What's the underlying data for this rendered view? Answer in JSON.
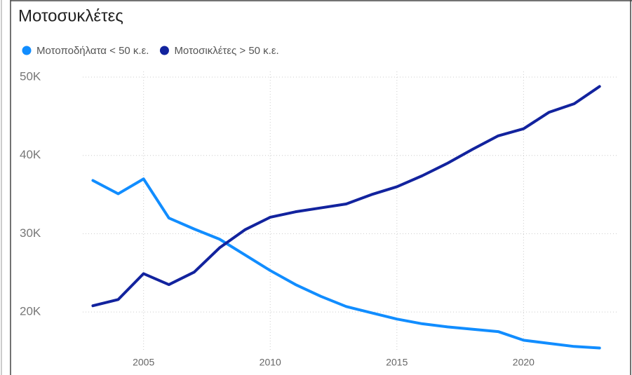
{
  "chart_data": {
    "type": "line",
    "title": "Μοτοσυκλέτες",
    "x": [
      2003,
      2004,
      2005,
      2006,
      2007,
      2008,
      2009,
      2010,
      2011,
      2012,
      2013,
      2014,
      2015,
      2016,
      2017,
      2018,
      2019,
      2020,
      2021,
      2022,
      2023
    ],
    "series": [
      {
        "name": "Μοτοποδήλατα < 50 κ.ε.",
        "color": "#118DFF",
        "values": [
          36800,
          35100,
          37000,
          32000,
          30600,
          29300,
          27300,
          25300,
          23500,
          22000,
          20700,
          19900,
          19100,
          18500,
          18100,
          17800,
          17500,
          16400,
          16000,
          15600,
          15400
        ]
      },
      {
        "name": "Μοτοσικλέτες > 50 κ.ε.",
        "color": "#12239E",
        "values": [
          20800,
          21600,
          24900,
          23500,
          25100,
          28200,
          30500,
          32100,
          32800,
          33300,
          33800,
          35000,
          36000,
          37400,
          39000,
          40800,
          42500,
          43400,
          45500,
          46600,
          48800
        ]
      }
    ],
    "xlim": [
      2002.6,
      2023.7
    ],
    "xticks": [
      2005,
      2010,
      2015,
      2020
    ],
    "ylim": [
      13300,
      50000
    ],
    "yticks": [
      {
        "value": 20000,
        "label": "20K"
      },
      {
        "value": 30000,
        "label": "30K"
      },
      {
        "value": 40000,
        "label": "40K"
      },
      {
        "value": 50000,
        "label": "50K"
      }
    ],
    "grid": true
  }
}
